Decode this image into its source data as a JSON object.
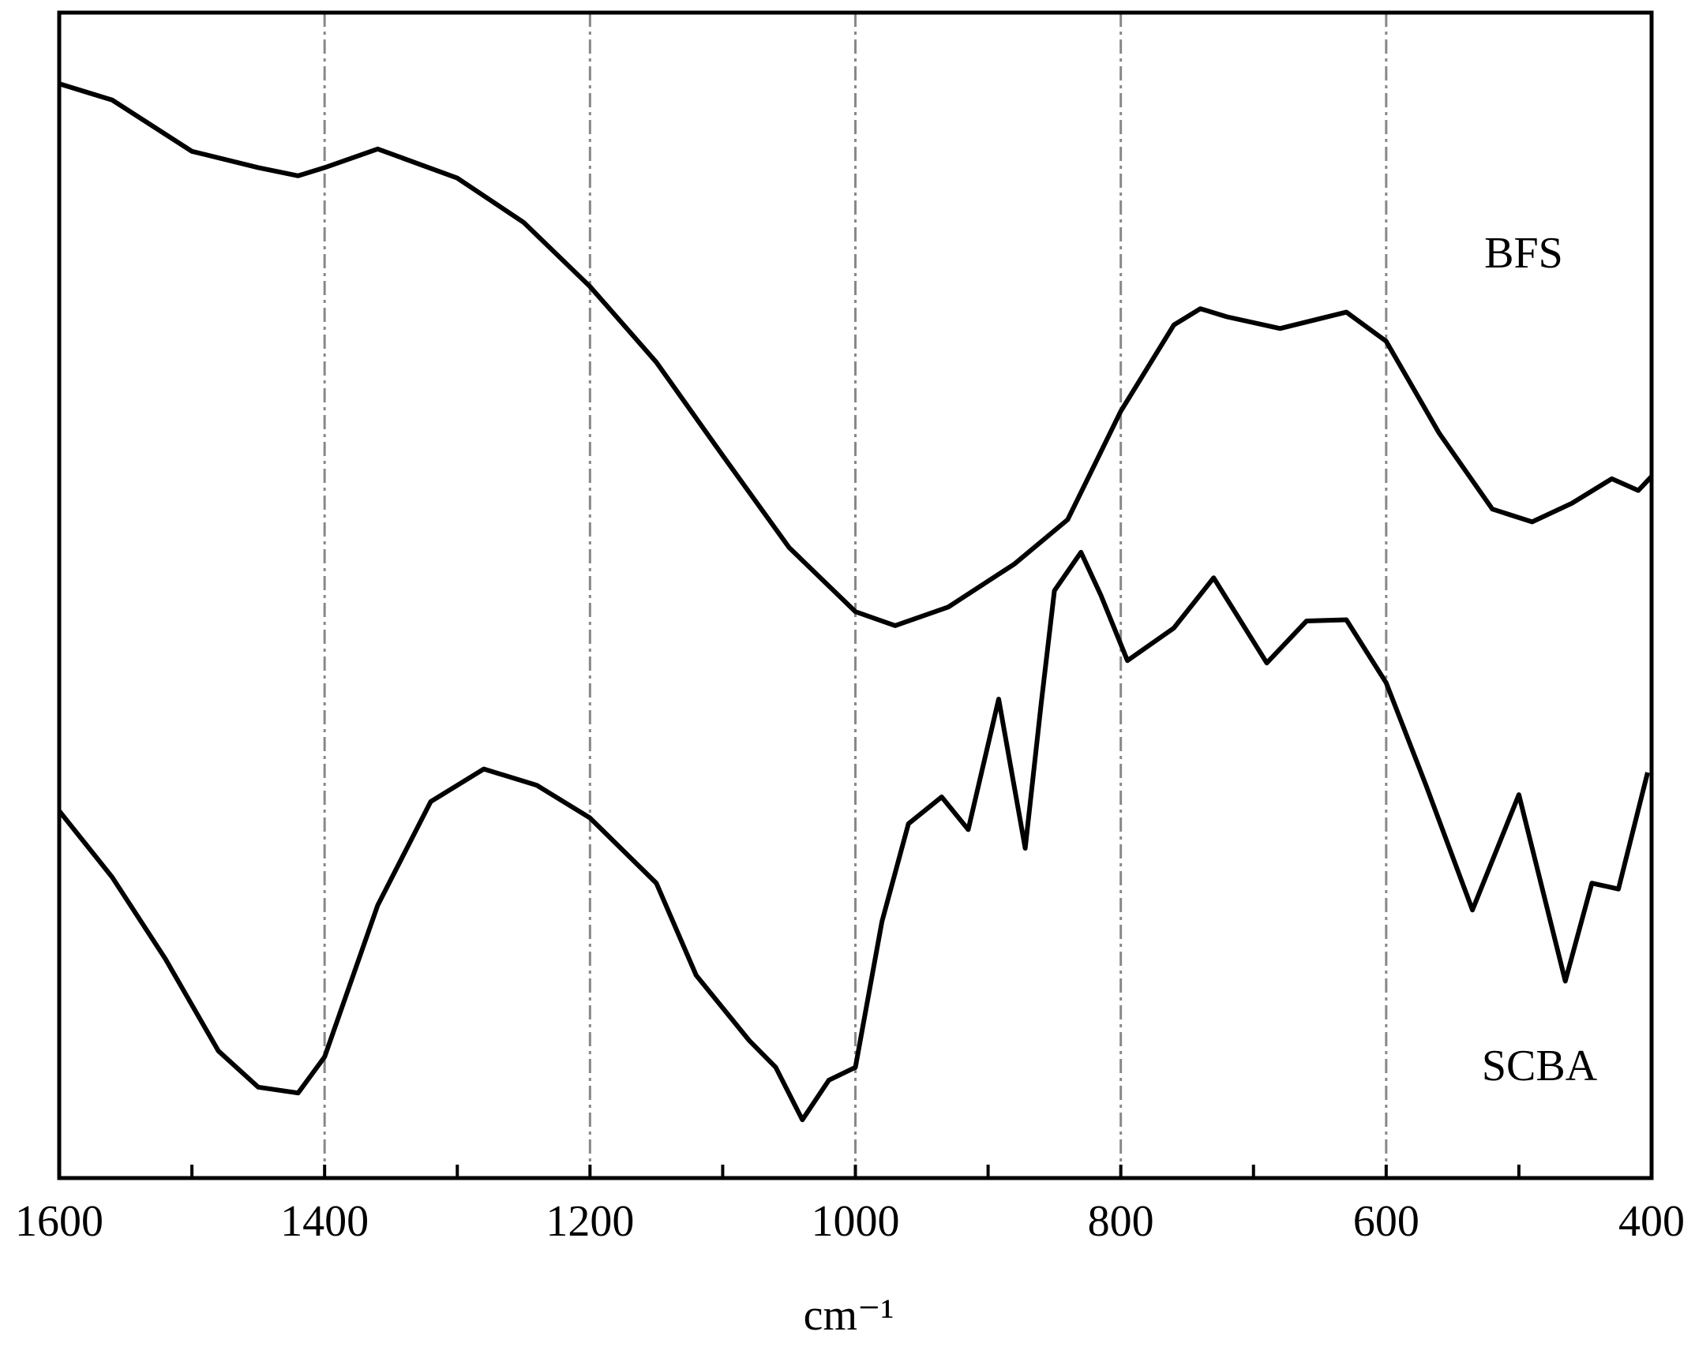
{
  "chart_data": {
    "type": "line",
    "x_label": "cm⁻¹",
    "xlim": [
      1600,
      400
    ],
    "xticks": [
      1600,
      1400,
      1200,
      1000,
      800,
      600,
      400
    ],
    "xminor_ticks": [
      1500,
      1300,
      1100,
      900,
      700,
      500
    ],
    "ylim": [
      0,
      100
    ],
    "grid": true,
    "series": [
      {
        "name": "BFS",
        "color": "#000000",
        "x": [
          1600,
          1560,
          1500,
          1450,
          1420,
          1400,
          1360,
          1300,
          1250,
          1200,
          1150,
          1100,
          1050,
          1000,
          970,
          930,
          880,
          840,
          800,
          760,
          740,
          720,
          680,
          630,
          600,
          560,
          520,
          490,
          460,
          430,
          410,
          400
        ],
        "values": [
          93.9,
          92.5,
          88.1,
          86.7,
          86.0,
          86.7,
          88.3,
          85.8,
          82.0,
          76.5,
          70.0,
          62.0,
          54.1,
          48.6,
          47.4,
          49.0,
          52.7,
          56.5,
          65.8,
          73.2,
          74.6,
          73.9,
          72.9,
          74.3,
          71.8,
          63.9,
          57.4,
          56.3,
          57.9,
          60.0,
          59.0,
          60.2
        ]
      },
      {
        "name": "SCBA",
        "color": "#000000",
        "x": [
          1600,
          1560,
          1520,
          1480,
          1450,
          1420,
          1400,
          1360,
          1320,
          1280,
          1240,
          1200,
          1150,
          1120,
          1080,
          1060,
          1040,
          1020,
          1000,
          980,
          960,
          935,
          915,
          892,
          872,
          860,
          850,
          830,
          815,
          795,
          760,
          730,
          690,
          660,
          630,
          600,
          570,
          535,
          500,
          465,
          445,
          425,
          403
        ],
        "values": [
          31.5,
          25.8,
          18.8,
          10.9,
          7.8,
          7.3,
          10.4,
          23.4,
          32.3,
          35.1,
          33.7,
          30.9,
          25.3,
          17.4,
          11.8,
          9.5,
          5.0,
          8.4,
          9.5,
          22.0,
          30.4,
          32.7,
          29.9,
          41.1,
          28.3,
          40.7,
          50.4,
          53.7,
          50.0,
          44.4,
          47.2,
          51.5,
          44.2,
          47.8,
          47.9,
          42.5,
          33.7,
          23.0,
          32.9,
          16.9,
          25.3,
          24.8,
          34.8
        ]
      }
    ]
  }
}
